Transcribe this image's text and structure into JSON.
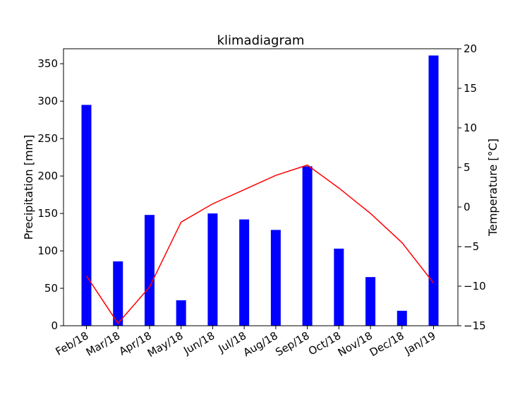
{
  "chart_data": {
    "type": "bar",
    "title": "klimadiagram",
    "xlabel": "",
    "ylabel": "Precipitation [mm]",
    "y2label": "Temperature [°C]",
    "categories": [
      "Feb/18",
      "Mar/18",
      "Apr/18",
      "May/18",
      "Jun/18",
      "Jul/18",
      "Aug/18",
      "Sep/18",
      "Oct/18",
      "Nov/18",
      "Dec/18",
      "Jan/19"
    ],
    "ylim": [
      0,
      370
    ],
    "y2lim": [
      -15,
      20
    ],
    "yticks": [
      0,
      50,
      100,
      150,
      200,
      250,
      300,
      350
    ],
    "y2ticks": [
      -15,
      -10,
      -5,
      0,
      5,
      10,
      15,
      20
    ],
    "grid": false,
    "series": [
      {
        "type": "bar",
        "axis": "left",
        "color": "#0000ff",
        "values": [
          295,
          86,
          148,
          34,
          150,
          142,
          128,
          213,
          103,
          65,
          20,
          361
        ]
      },
      {
        "type": "line",
        "axis": "right",
        "color": "#ff0000",
        "values": [
          -8.7,
          -14.7,
          -10.1,
          -1.9,
          0.4,
          2.2,
          4.0,
          5.3,
          2.4,
          -0.8,
          -4.5,
          -9.6
        ]
      }
    ]
  }
}
